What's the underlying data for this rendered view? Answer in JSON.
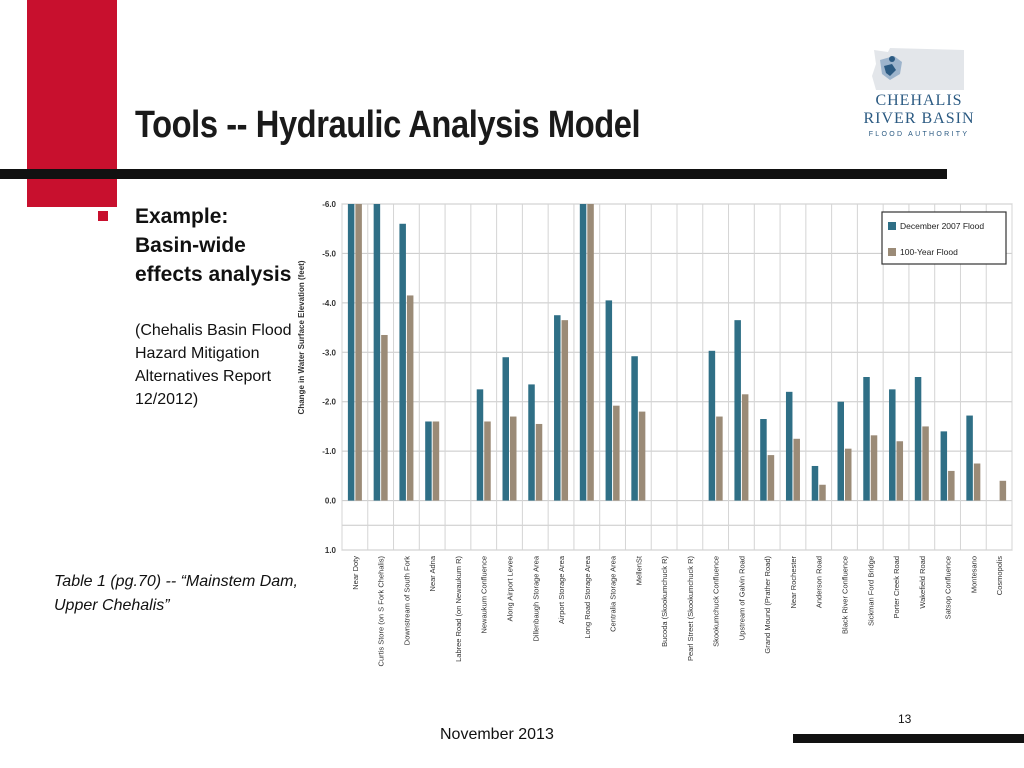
{
  "slide": {
    "title": "Tools -- Hydraulic Analysis Model",
    "bullet_heading": "Example: Basin-wide effects analysis",
    "bullet_sub": "(Chehalis Basin Flood Hazard Mitigation Alternatives Report 12/2012)",
    "caption": "Table 1 (pg.70) -- “Mainstem Dam, Upper Chehalis”",
    "footer_date": "November 2013",
    "page_number": "13",
    "logo": {
      "line1": "CHEHALIS",
      "line2": "RIVER BASIN",
      "line3": "FLOOD AUTHORITY"
    },
    "colors": {
      "accent_red": "#c8102e",
      "rule_black": "#111111",
      "logo_blue": "#2b5a82"
    }
  },
  "chart_data": {
    "type": "bar",
    "ylabel": "Change in Water Surface Elevation (feet)",
    "ylim": [
      -6,
      1
    ],
    "y_axis_inverted": true,
    "yticks": [
      "-6.0",
      "-5.0",
      "-4.0",
      "-3.0",
      "-2.0",
      "-1.0",
      "0.0",
      "1.0"
    ],
    "grid": true,
    "legend_position": "top-right",
    "categories": [
      "Near Doty",
      "Curtis Store (on S Fork Chehalis)",
      "Downstream of South Fork",
      "Near Adna",
      "Labree Road (on Newaukum R)",
      "Newaukum Confluence",
      "Along Airport Levee",
      "Dillenbaugh Storage Area",
      "Airport Storage Area",
      "Long Road Storage Area",
      "Centralia Storage Area",
      "MellenSt",
      "Bucoda (Skookumchuck R)",
      "Pearl Street (Skookumchuck R)",
      "Skookumchuck Confluence",
      "Upstream of Galvin Road",
      "Grand Mound (Prather Road)",
      "Near Rochester",
      "Anderson Road",
      "Black River Confluence",
      "Sickman Ford Bridge",
      "Porter Creek Road",
      "Wakefield Road",
      "Satsop Confluence",
      "Montesano",
      "Cosmopolis"
    ],
    "series": [
      {
        "name": "December 2007 Flood",
        "color": "#2f6f86",
        "values": [
          -6.0,
          -6.0,
          -5.6,
          -1.6,
          null,
          -2.25,
          -2.9,
          -2.35,
          -3.75,
          -6.0,
          -4.05,
          -2.92,
          null,
          null,
          -3.03,
          -3.65,
          -1.65,
          -2.2,
          -0.7,
          -2.0,
          -2.5,
          -2.25,
          -2.5,
          -1.4,
          -1.72,
          null
        ]
      },
      {
        "name": "100-Year Flood",
        "color": "#9b8b77",
        "values": [
          -6.0,
          -3.35,
          -4.15,
          -1.6,
          null,
          -1.6,
          -1.7,
          -1.55,
          -3.65,
          -6.0,
          -1.92,
          -1.8,
          null,
          null,
          -1.7,
          -2.15,
          -0.92,
          -1.25,
          -0.32,
          -1.05,
          -1.32,
          -1.2,
          -1.5,
          -0.6,
          -0.75,
          -0.4
        ]
      }
    ]
  }
}
